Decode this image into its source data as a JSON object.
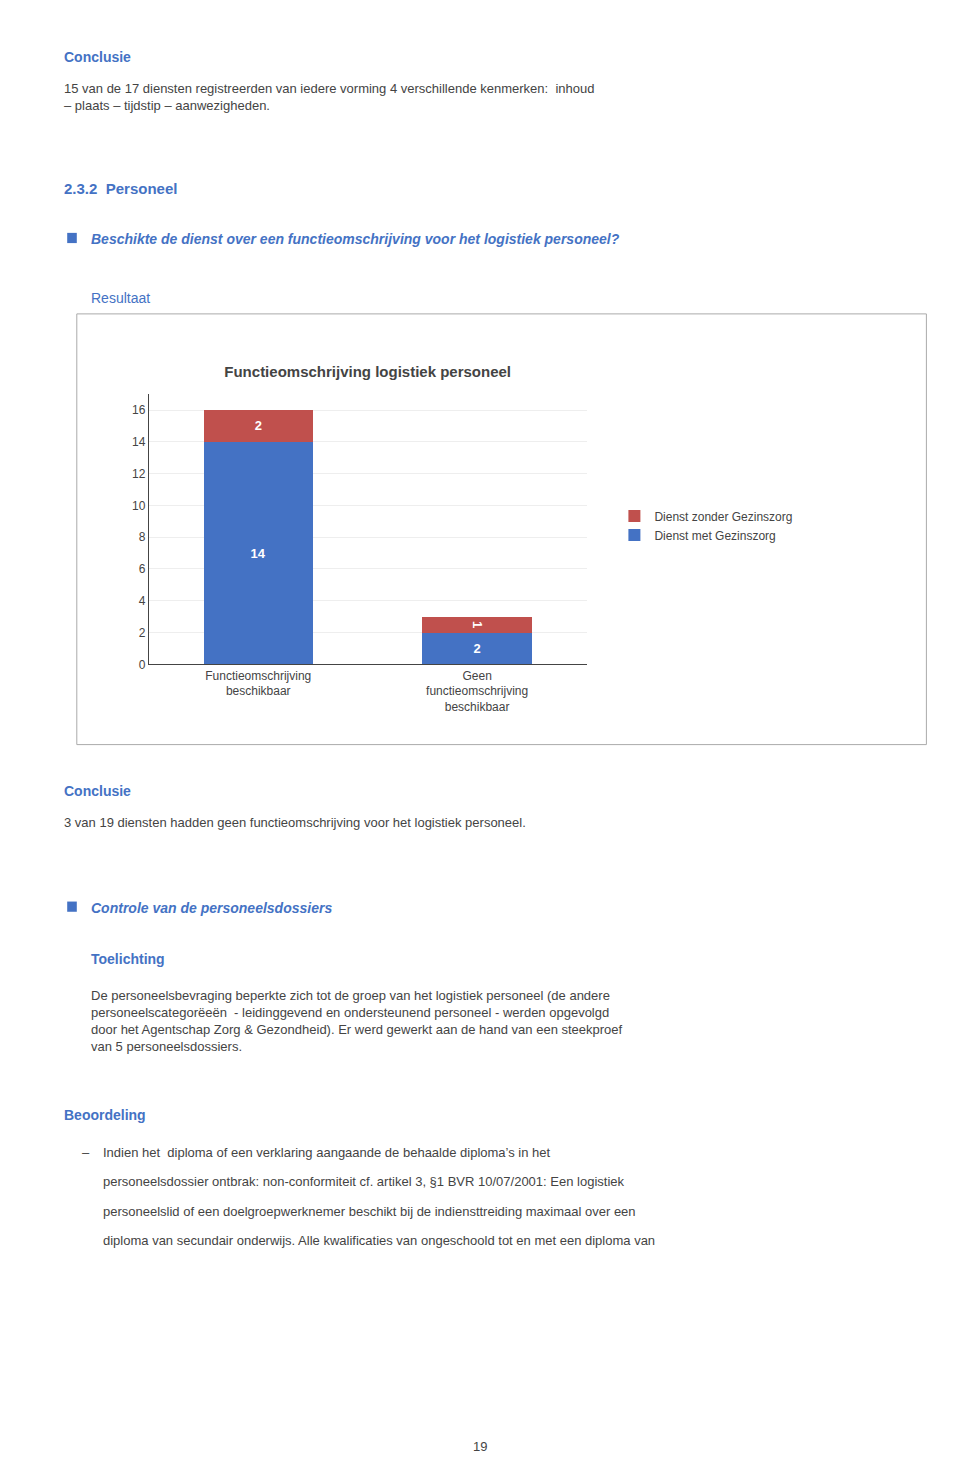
{
  "chart_data": {
    "type": "bar",
    "title": "Functieomschrijving logistiek personeel",
    "categories": [
      "Functieomschrijving\nbeschikbaar",
      "Geen\nfunctieomschrijving\nbeschikbaar"
    ],
    "series": [
      {
        "name": "Dienst met Gezinszorg",
        "color": "#4472C4",
        "values": [
          14,
          2
        ]
      },
      {
        "name": "Dienst zonder Gezinszorg",
        "color": "#C0504D",
        "values": [
          2,
          1
        ]
      }
    ],
    "stacked": true,
    "data_labels": true,
    "ylim": [
      0,
      17
    ],
    "yticks": [
      0,
      2,
      4,
      6,
      8,
      10,
      12,
      14,
      16
    ],
    "grid": true,
    "legend": "right",
    "annotations": [
      {
        "text": "Conclusie",
        "color": "#4472C4"
      },
      {
        "text": "15 van de 17 diensten registreerden van iedere vorming 4 verschillende kenmerken:  inhoud\n– plaats – tijdstip – aanwezigheden."
      },
      {
        "text": "2.3.2  Personeel",
        "color": "#4472C4"
      },
      {
        "text": "Beschikte de dienst over een functieomschrijving voor het logistiek personeel?",
        "color": "#4472C4"
      },
      {
        "text": "Resultaat",
        "color": "#4472C4"
      },
      {
        "text": "Conclusie",
        "color": "#4472C4"
      },
      {
        "text": "3 van 19 diensten hadden geen functieomschrijving voor het logistiek personeel."
      },
      {
        "text": "Controle van de personeelsdossiers",
        "color": "#4472C4"
      },
      {
        "text": "Toelichting",
        "color": "#4472C4"
      },
      {
        "text": "De personeelsbevraging beperkte zich tot de groep van het logistiek personeel (de andere\npersoneelscategorëeën  - leidinggevend en ondersteunend personeel - werden opgevolgd\ndoor het Agentschap Zorg & Gezondheid). Er werd gewerkt aan de hand van een steekproef\nvan 5 personeelsdossiers."
      },
      {
        "text": "Beoordeling",
        "color": "#4472C4"
      },
      {
        "text": "–"
      },
      {
        "text": "Indien het  diploma of een verklaring aangaande de behaalde diploma’s in het"
      },
      {
        "text": "personeelsdossier ontbrak: non-conformiteit cf. artikel 3, §1 BVR 10/07/2001: Een logistiek"
      },
      {
        "text": "personeelslid of een doelgroepwerknemer beschikt bij de indiensttreiding maximaal over een"
      },
      {
        "text": "diploma van secundair onderwijs. Alle kwalificaties van ongeschoold tot en met een diploma van"
      },
      {
        "text": "19"
      }
    ]
  }
}
